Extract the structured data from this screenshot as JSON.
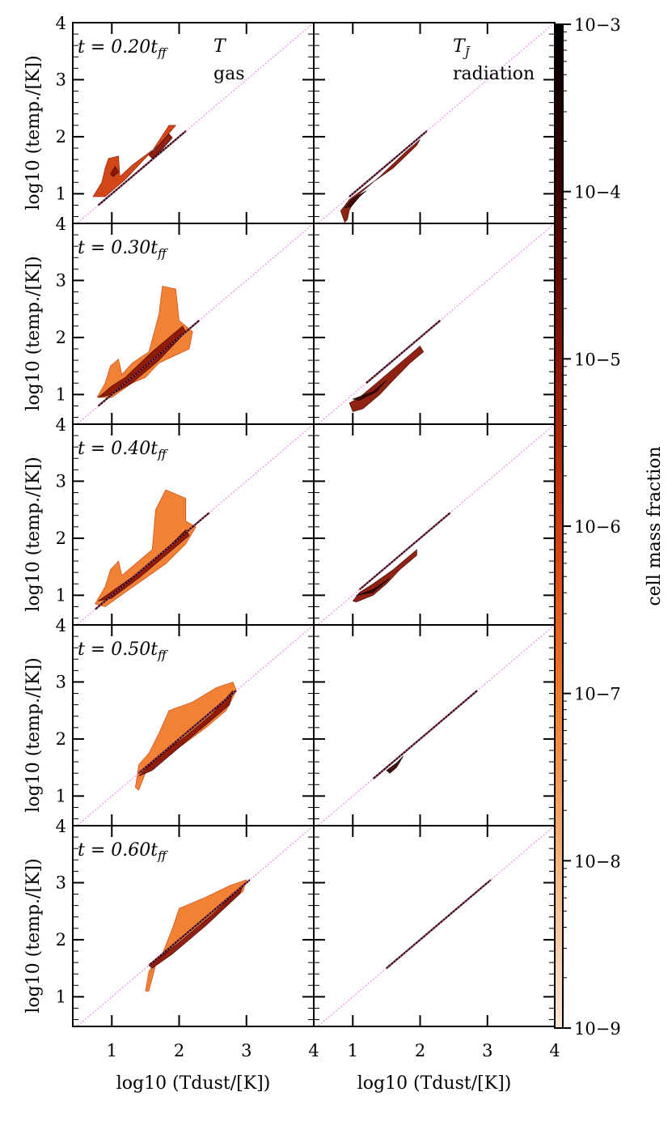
{
  "chart_data": {
    "type": "heatmap",
    "description_rows": 5,
    "description_cols": 2,
    "column_titles": [
      {
        "symbol": "T",
        "label": "gas"
      },
      {
        "symbol": "T",
        "symbol_sub": "J̄",
        "label": "radiation"
      }
    ],
    "row_labels": [
      "t = 0.20t",
      "t = 0.30t",
      "t = 0.40t",
      "t = 0.50t",
      "t = 0.60t"
    ],
    "row_label_sub": "ff",
    "ylabel": "log10 (temp./[K])",
    "xlabel": "log10 (Tdust/[K])",
    "x_range": [
      0.42,
      4.0
    ],
    "y_range": [
      0.48,
      4.0
    ],
    "x_ticks": [
      "1",
      "2",
      "3",
      "4"
    ],
    "y_ticks": [
      "1",
      "2",
      "3"
    ],
    "y_top_tick": "4",
    "colorbar": {
      "label": "cell mass fraction",
      "scale": "log",
      "range": [
        1e-09,
        0.001
      ],
      "tick_labels": [
        "10−9",
        "10−8",
        "10−7",
        "10−6",
        "10−5",
        "10−4",
        "10−3"
      ],
      "colors": [
        "#fbe6d6",
        "#f6b47c",
        "#ef7a2a",
        "#cf3d0c",
        "#8a1606",
        "#3d0403",
        "#000000"
      ]
    },
    "reference_line": {
      "style": "dotted",
      "color": "#ee66ee",
      "relation": "y = x"
    },
    "panels": [
      {
        "row": 0,
        "col": 0,
        "regions": [
          {
            "pts": [
              [
                0.72,
                0.95
              ],
              [
                0.85,
                1.2
              ],
              [
                0.9,
                1.45
              ],
              [
                0.95,
                1.62
              ],
              [
                1.1,
                1.66
              ],
              [
                1.12,
                1.3
              ],
              [
                1.3,
                1.5
              ],
              [
                1.7,
                1.85
              ],
              [
                1.95,
                2.2
              ],
              [
                1.85,
                2.2
              ],
              [
                1.6,
                1.75
              ],
              [
                1.2,
                1.25
              ],
              [
                0.9,
                0.95
              ]
            ],
            "level": 3
          },
          {
            "pts": [
              [
                0.98,
                1.35
              ],
              [
                1.05,
                1.48
              ],
              [
                1.1,
                1.38
              ],
              [
                1.02,
                1.3
              ]
            ],
            "level": 4
          },
          {
            "pts": [
              [
                1.55,
                1.68
              ],
              [
                1.7,
                1.85
              ],
              [
                1.85,
                2.05
              ],
              [
                1.9,
                1.98
              ],
              [
                1.75,
                1.78
              ],
              [
                1.6,
                1.62
              ]
            ],
            "level": 4
          }
        ]
      },
      {
        "row": 0,
        "col": 1,
        "regions": [
          {
            "pts": [
              [
                0.82,
                0.7
              ],
              [
                0.95,
                0.9
              ],
              [
                1.2,
                1.12
              ],
              [
                1.6,
                1.45
              ],
              [
                1.95,
                1.85
              ],
              [
                2.0,
                1.95
              ],
              [
                1.8,
                1.75
              ],
              [
                1.4,
                1.3
              ],
              [
                1.1,
                1.0
              ],
              [
                0.95,
                0.72
              ],
              [
                0.92,
                0.55
              ],
              [
                0.88,
                0.5
              ]
            ],
            "level": 4
          },
          {
            "pts": [
              [
                0.88,
                0.75
              ],
              [
                0.98,
                0.9
              ],
              [
                1.2,
                1.05
              ],
              [
                1.1,
                0.95
              ],
              [
                0.98,
                0.78
              ]
            ],
            "level": 5
          }
        ]
      },
      {
        "row": 1,
        "col": 0,
        "regions": [
          {
            "pts": [
              [
                0.78,
                0.95
              ],
              [
                0.9,
                1.2
              ],
              [
                0.98,
                1.5
              ],
              [
                1.1,
                1.62
              ],
              [
                1.15,
                1.35
              ],
              [
                1.3,
                1.55
              ],
              [
                1.55,
                1.75
              ],
              [
                1.7,
                2.4
              ],
              [
                1.75,
                2.9
              ],
              [
                1.95,
                2.85
              ],
              [
                2.0,
                2.3
              ],
              [
                2.2,
                2.1
              ],
              [
                2.15,
                1.8
              ],
              [
                1.7,
                1.55
              ],
              [
                1.5,
                1.3
              ],
              [
                1.3,
                1.2
              ],
              [
                1.0,
                0.95
              ]
            ],
            "level": 2
          },
          {
            "pts": [
              [
                0.8,
                0.95
              ],
              [
                1.0,
                1.15
              ],
              [
                1.2,
                1.3
              ],
              [
                1.6,
                1.75
              ],
              [
                2.05,
                2.2
              ],
              [
                2.1,
                2.1
              ],
              [
                1.7,
                1.6
              ],
              [
                1.3,
                1.2
              ],
              [
                1.0,
                1.0
              ]
            ],
            "level": 4
          }
        ]
      },
      {
        "row": 1,
        "col": 1,
        "regions": [
          {
            "pts": [
              [
                0.95,
                0.85
              ],
              [
                1.1,
                0.95
              ],
              [
                1.3,
                1.15
              ],
              [
                1.6,
                1.45
              ],
              [
                2.0,
                1.85
              ],
              [
                2.05,
                1.75
              ],
              [
                1.85,
                1.55
              ],
              [
                1.6,
                1.25
              ],
              [
                1.4,
                1.0
              ],
              [
                1.15,
                0.75
              ],
              [
                1.0,
                0.7
              ]
            ],
            "level": 4
          },
          {
            "pts": [
              [
                1.0,
                0.92
              ],
              [
                1.3,
                1.05
              ],
              [
                1.5,
                1.25
              ],
              [
                1.35,
                1.05
              ],
              [
                1.1,
                0.9
              ]
            ],
            "level": 5
          }
        ]
      },
      {
        "row": 2,
        "col": 0,
        "regions": [
          {
            "pts": [
              [
                0.75,
                0.85
              ],
              [
                0.9,
                1.15
              ],
              [
                0.98,
                1.45
              ],
              [
                1.1,
                1.6
              ],
              [
                1.15,
                1.35
              ],
              [
                1.35,
                1.55
              ],
              [
                1.6,
                1.8
              ],
              [
                1.65,
                2.5
              ],
              [
                1.8,
                2.85
              ],
              [
                2.1,
                2.7
              ],
              [
                2.1,
                2.3
              ],
              [
                2.25,
                2.2
              ],
              [
                2.1,
                1.9
              ],
              [
                1.8,
                1.55
              ],
              [
                1.5,
                1.3
              ],
              [
                1.2,
                1.05
              ],
              [
                0.9,
                0.8
              ]
            ],
            "level": 2
          },
          {
            "pts": [
              [
                0.8,
                0.9
              ],
              [
                1.1,
                1.15
              ],
              [
                1.4,
                1.4
              ],
              [
                1.8,
                1.8
              ],
              [
                2.1,
                2.15
              ],
              [
                2.15,
                2.05
              ],
              [
                1.8,
                1.7
              ],
              [
                1.4,
                1.3
              ],
              [
                1.0,
                0.95
              ]
            ],
            "level": 4
          }
        ]
      },
      {
        "row": 2,
        "col": 1,
        "regions": [
          {
            "pts": [
              [
                1.0,
                0.9
              ],
              [
                1.1,
                1.05
              ],
              [
                1.3,
                1.2
              ],
              [
                1.6,
                1.45
              ],
              [
                1.95,
                1.8
              ],
              [
                1.95,
                1.7
              ],
              [
                1.7,
                1.45
              ],
              [
                1.5,
                1.2
              ],
              [
                1.3,
                1.0
              ],
              [
                1.05,
                0.88
              ]
            ],
            "level": 4
          },
          {
            "pts": [
              [
                1.05,
                1.0
              ],
              [
                1.3,
                1.1
              ],
              [
                1.55,
                1.3
              ],
              [
                1.3,
                1.05
              ]
            ],
            "level": 5
          }
        ]
      },
      {
        "row": 3,
        "col": 0,
        "regions": [
          {
            "pts": [
              [
                1.35,
                1.15
              ],
              [
                1.4,
                1.55
              ],
              [
                1.55,
                1.75
              ],
              [
                1.7,
                2.1
              ],
              [
                1.85,
                2.5
              ],
              [
                2.2,
                2.65
              ],
              [
                2.55,
                2.9
              ],
              [
                2.8,
                3.0
              ],
              [
                2.85,
                2.85
              ],
              [
                2.7,
                2.5
              ],
              [
                2.4,
                2.2
              ],
              [
                2.0,
                1.85
              ],
              [
                1.7,
                1.6
              ],
              [
                1.5,
                1.4
              ],
              [
                1.4,
                1.1
              ]
            ],
            "level": 2
          },
          {
            "pts": [
              [
                1.4,
                1.35
              ],
              [
                1.7,
                1.7
              ],
              [
                2.1,
                2.05
              ],
              [
                2.5,
                2.45
              ],
              [
                2.8,
                2.85
              ],
              [
                2.75,
                2.6
              ],
              [
                2.3,
                2.15
              ],
              [
                1.9,
                1.75
              ],
              [
                1.6,
                1.45
              ]
            ],
            "level": 4
          }
        ]
      },
      {
        "row": 3,
        "col": 1,
        "regions": [
          {
            "pts": [
              [
                1.5,
                1.45
              ],
              [
                1.65,
                1.58
              ],
              [
                1.75,
                1.7
              ],
              [
                1.65,
                1.5
              ],
              [
                1.55,
                1.4
              ]
            ],
            "level": 5
          }
        ]
      },
      {
        "row": 4,
        "col": 0,
        "regions": [
          {
            "pts": [
              [
                1.5,
                1.1
              ],
              [
                1.55,
                1.45
              ],
              [
                1.75,
                1.75
              ],
              [
                1.9,
                2.2
              ],
              [
                2.0,
                2.55
              ],
              [
                2.4,
                2.75
              ],
              [
                2.75,
                2.95
              ],
              [
                3.0,
                3.05
              ],
              [
                2.95,
                2.85
              ],
              [
                2.6,
                2.5
              ],
              [
                2.2,
                2.15
              ],
              [
                1.9,
                1.85
              ],
              [
                1.65,
                1.55
              ],
              [
                1.55,
                1.1
              ]
            ],
            "level": 2
          },
          {
            "pts": [
              [
                1.55,
                1.55
              ],
              [
                2.0,
                1.95
              ],
              [
                2.5,
                2.45
              ],
              [
                2.95,
                2.95
              ],
              [
                2.9,
                2.8
              ],
              [
                2.4,
                2.25
              ],
              [
                1.9,
                1.75
              ],
              [
                1.6,
                1.5
              ]
            ],
            "level": 4
          }
        ]
      },
      {
        "row": 4,
        "col": 1,
        "regions": []
      }
    ]
  }
}
